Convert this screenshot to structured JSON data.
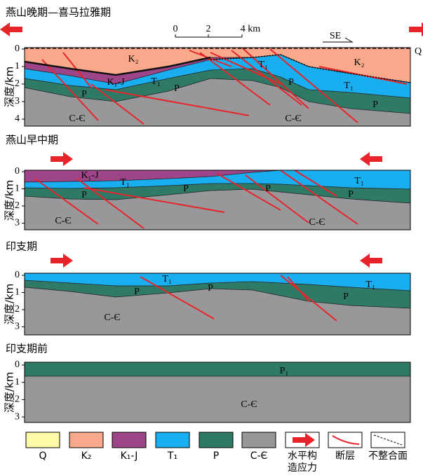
{
  "panels": [
    {
      "title": "燕山晚期—喜马拉雅期",
      "axis_label": "深度/km",
      "ticks": [
        0,
        1,
        2,
        3,
        4
      ],
      "scale_bar": [
        "0",
        "2",
        "4 km"
      ],
      "direction": "SE",
      "units": [
        "K₂",
        "K₁-J",
        "T₁",
        "P",
        "P",
        "C-Є",
        "T₁",
        "P",
        "T₁",
        "P",
        "C-Є",
        "K₂",
        "Q"
      ]
    },
    {
      "title": "燕山早中期",
      "axis_label": "深度/km",
      "ticks": [
        0,
        1,
        2,
        3
      ],
      "units": [
        "K₁-J",
        "T₁",
        "P",
        "P",
        "P",
        "P",
        "T₁",
        "C-Є",
        "C-Є"
      ]
    },
    {
      "title": "印支期",
      "axis_label": "深度/km",
      "ticks": [
        0,
        1,
        2,
        3
      ],
      "units": [
        "T₁",
        "P",
        "P",
        "P",
        "T₁",
        "C-Є"
      ]
    },
    {
      "title": "印支期前",
      "axis_label": "深度/km",
      "ticks": [
        0,
        1,
        2,
        3
      ],
      "units": [
        "P₁",
        "C-Є"
      ]
    }
  ],
  "legend": [
    {
      "label": "Q",
      "color": "#fffaa8"
    },
    {
      "label": "K₂",
      "color": "#f8a98b"
    },
    {
      "label": "K₁-J",
      "color": "#9e4489"
    },
    {
      "label": "T₁",
      "color": "#19aeef"
    },
    {
      "label": "P",
      "color": "#2f7a66"
    },
    {
      "label": "C-Є",
      "color": "#98989a"
    },
    {
      "label": "水平构造应力"
    },
    {
      "label": "断层"
    },
    {
      "label": "不整合面"
    }
  ]
}
